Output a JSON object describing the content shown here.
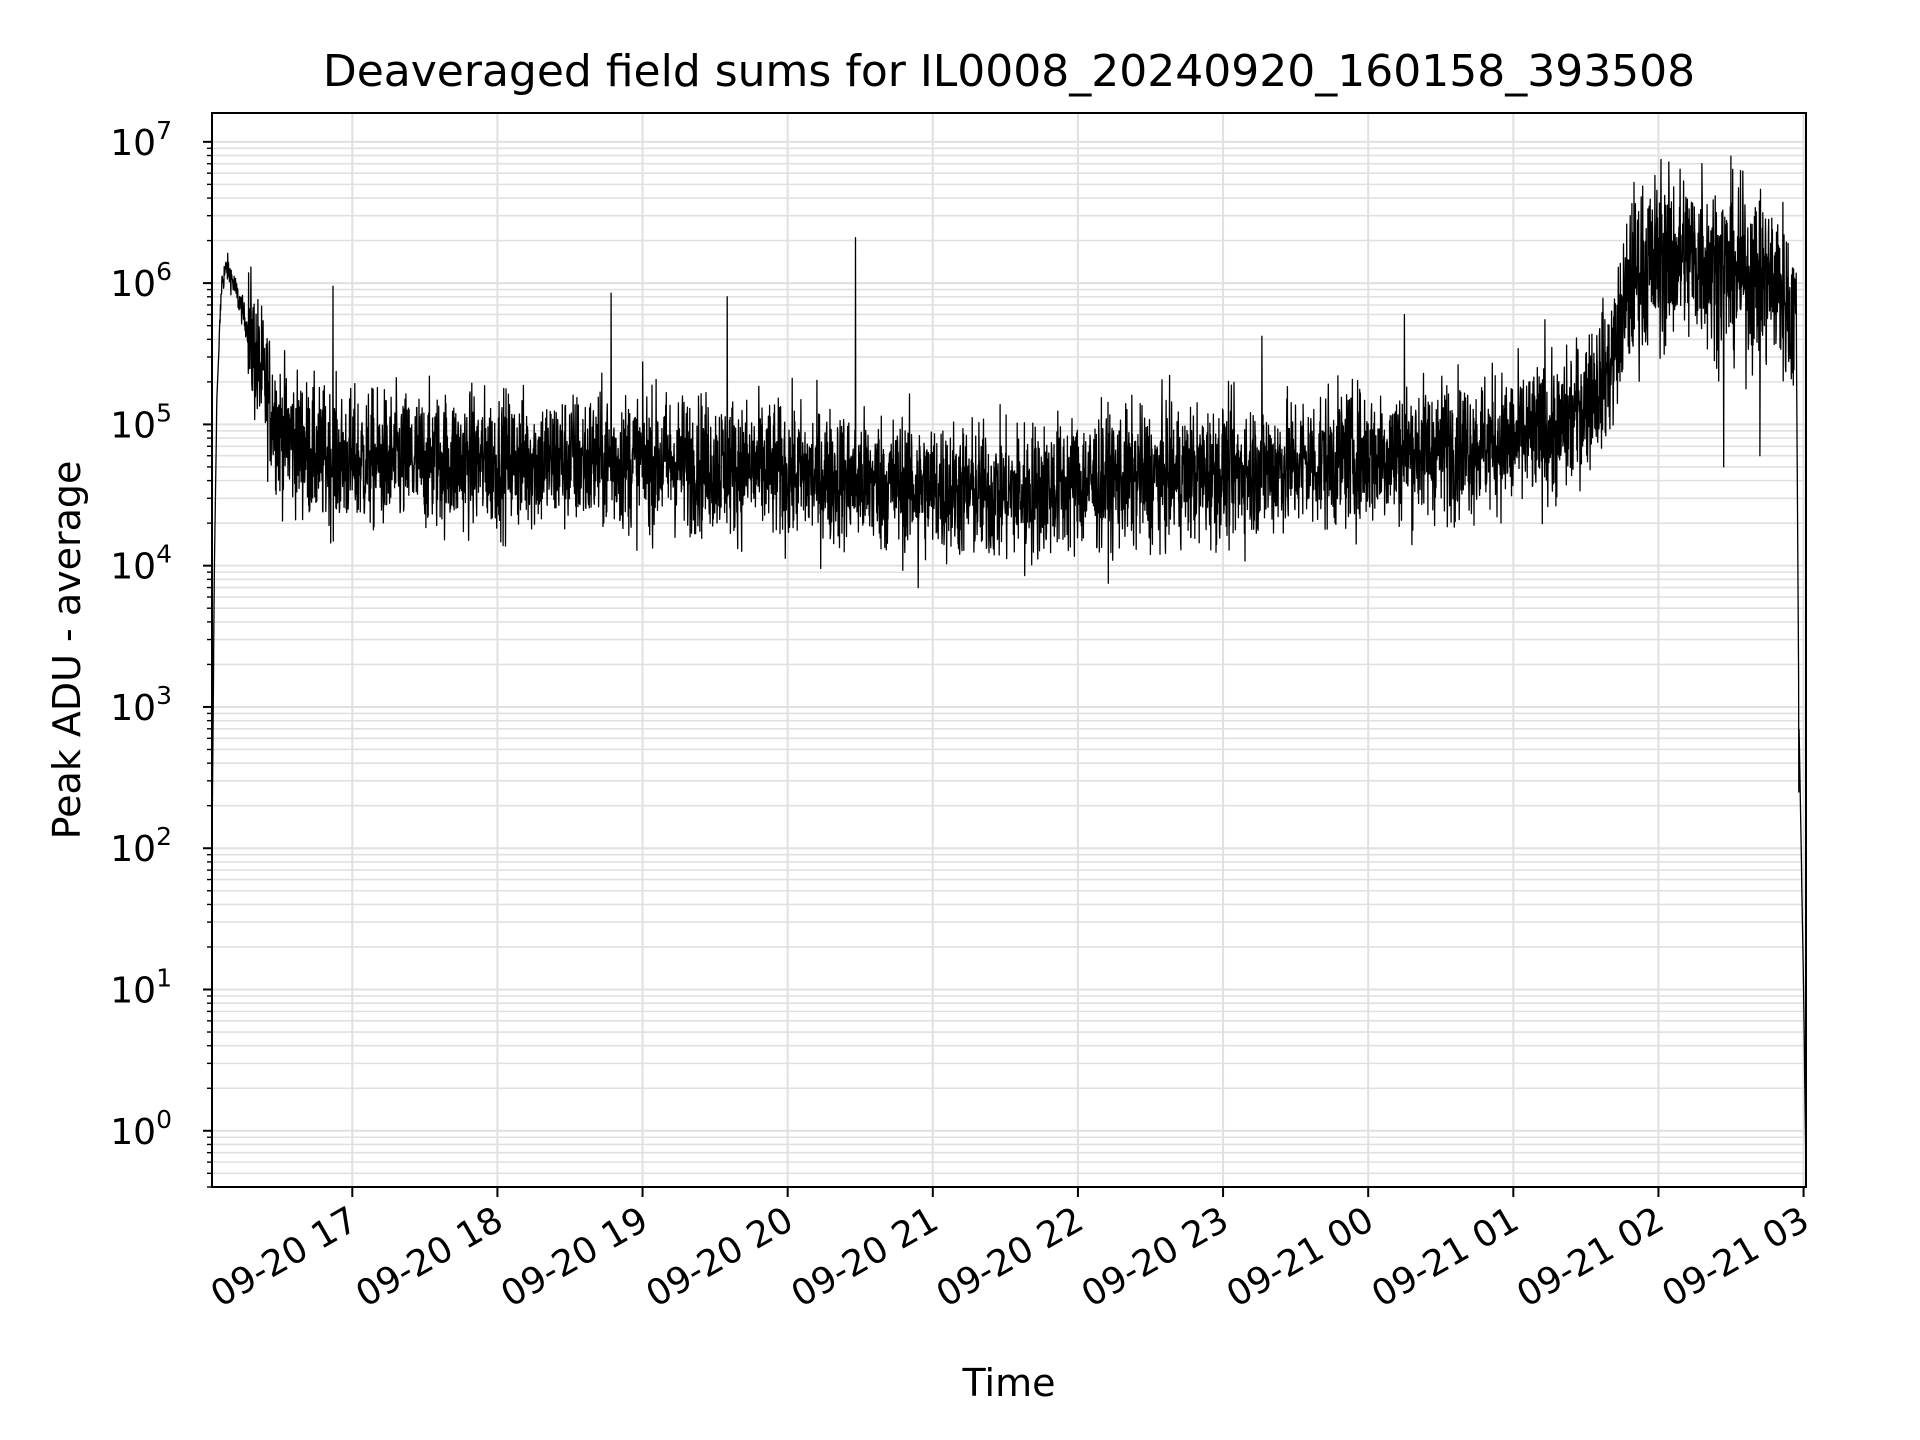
{
  "chart_data": {
    "type": "line",
    "title": "Deaveraged field sums for IL0008_20240920_160158_393508",
    "xlabel": "Time",
    "ylabel": "Peak ADU - average",
    "yscale": "log",
    "ylim": [
      0.4,
      16000000
    ],
    "xlim": [
      "2024-09-20 16:02",
      "2024-09-21 03:01"
    ],
    "grid": true,
    "line_color": "#000000",
    "grid_color": "#e0e0e0",
    "x_ticks": [
      "09-20 17",
      "09-20 18",
      "09-20 19",
      "09-20 20",
      "09-20 21",
      "09-20 22",
      "09-20 23",
      "09-21 00",
      "09-21 01",
      "09-21 02",
      "09-21 03"
    ],
    "y_ticks": [
      {
        "base": "10",
        "exp": "0",
        "value": 1
      },
      {
        "base": "10",
        "exp": "1",
        "value": 10
      },
      {
        "base": "10",
        "exp": "2",
        "value": 100
      },
      {
        "base": "10",
        "exp": "3",
        "value": 1000
      },
      {
        "base": "10",
        "exp": "4",
        "value": 10000
      },
      {
        "base": "10",
        "exp": "5",
        "value": 100000
      },
      {
        "base": "10",
        "exp": "6",
        "value": 1000000
      },
      {
        "base": "10",
        "exp": "7",
        "value": 10000000
      }
    ],
    "series": [
      {
        "values": [
          [
            "2024-09-20 16:02",
            100
          ],
          [
            "2024-09-20 16:03",
            10000
          ],
          [
            "2024-09-20 16:04",
            150000
          ],
          [
            "2024-09-20 16:06",
            1000000
          ],
          [
            "2024-09-20 16:08",
            1300000
          ],
          [
            "2024-09-20 16:10",
            1100000
          ],
          [
            "2024-09-20 16:15",
            600000
          ],
          [
            "2024-09-20 16:20",
            300000
          ],
          [
            "2024-09-20 16:25",
            160000
          ],
          [
            "2024-09-20 16:30",
            90000
          ],
          [
            "2024-09-20 16:45",
            60000
          ],
          [
            "2024-09-20 17:00",
            55000
          ],
          [
            "2024-09-20 17:30",
            55000
          ],
          [
            "2024-09-20 18:00",
            55000
          ],
          [
            "2024-09-20 18:30",
            55000
          ],
          [
            "2024-09-20 19:00",
            55000
          ],
          [
            "2024-09-20 19:30",
            52000
          ],
          [
            "2024-09-20 20:00",
            45000
          ],
          [
            "2024-09-20 20:30",
            40000
          ],
          [
            "2024-09-20 21:00",
            35000
          ],
          [
            "2024-09-20 21:30",
            32000
          ],
          [
            "2024-09-20 22:00",
            38000
          ],
          [
            "2024-09-20 22:30",
            42000
          ],
          [
            "2024-09-20 23:00",
            45000
          ],
          [
            "2024-09-20 23:30",
            52000
          ],
          [
            "2024-09-21 00:00",
            60000
          ],
          [
            "2024-09-21 00:30",
            68000
          ],
          [
            "2024-09-21 01:00",
            75000
          ],
          [
            "2024-09-21 01:20",
            90000
          ],
          [
            "2024-09-21 01:40",
            250000
          ],
          [
            "2024-09-21 01:50",
            1200000
          ],
          [
            "2024-09-21 02:10",
            1600000
          ],
          [
            "2024-09-21 02:30",
            1200000
          ],
          [
            "2024-09-21 02:50",
            1000000
          ],
          [
            "2024-09-21 02:57",
            500000
          ],
          [
            "2024-09-21 02:58",
            1000
          ],
          [
            "2024-09-21 02:59",
            100
          ],
          [
            "2024-09-21 03:00",
            10
          ],
          [
            "2024-09-21 03:01",
            0.5
          ]
        ],
        "spikes": [
          [
            "2024-09-20 16:52",
            950000
          ],
          [
            "2024-09-20 18:47",
            850000
          ],
          [
            "2024-09-20 19:35",
            800000
          ],
          [
            "2024-09-20 20:28",
            2100000
          ],
          [
            "2024-09-20 20:54",
            7000
          ],
          [
            "2024-09-20 21:38",
            8500
          ],
          [
            "2024-09-20 23:16",
            420000
          ],
          [
            "2024-09-21 00:15",
            600000
          ],
          [
            "2024-09-21 01:13",
            550000
          ],
          [
            "2024-09-21 02:01",
            7500000
          ],
          [
            "2024-09-21 02:18",
            7000000
          ],
          [
            "2024-09-21 02:27",
            50000
          ],
          [
            "2024-09-21 02:42",
            60000
          ],
          [
            "2024-09-21 02:58",
            250
          ]
        ]
      }
    ]
  }
}
